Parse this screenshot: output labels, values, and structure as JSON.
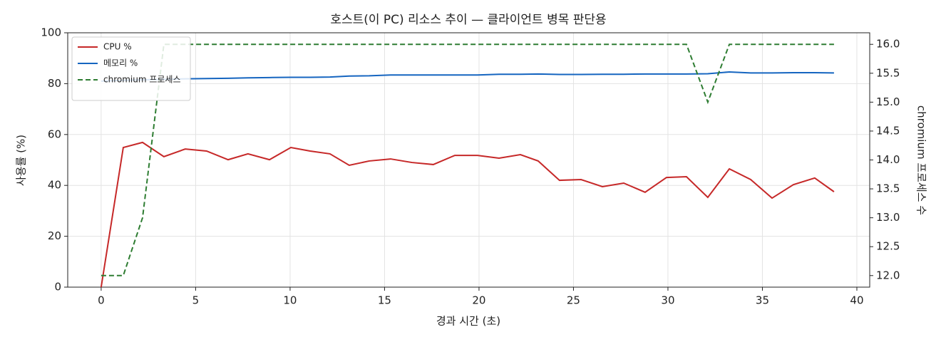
{
  "chart_data": {
    "type": "line",
    "title": "호스트(이 PC) 리소스 추이 — 클라이언트 병목 판단용",
    "xlabel": "경과 시간 (초)",
    "ylabel": "사용률 (%)",
    "y2label": "chromium 프로세스 수",
    "x": [
      0,
      1.17,
      2.19,
      3.32,
      4.45,
      5.58,
      6.72,
      7.77,
      8.91,
      10.04,
      11.06,
      12.11,
      13.13,
      14.19,
      15.32,
      16.45,
      17.58,
      18.72,
      19.92,
      21.06,
      22.19,
      23.13,
      24.26,
      25.4,
      26.53,
      27.66,
      28.79,
      29.92,
      30.98,
      32.11,
      33.25,
      34.38,
      35.51,
      36.64,
      37.77,
      38.79
    ],
    "series": [
      {
        "name": "CPU %",
        "color": "#c62828",
        "linestyle": "solid",
        "values": [
          0,
          54.9,
          56.9,
          51.3,
          54.3,
          53.5,
          50.1,
          52.4,
          50.1,
          54.9,
          53.5,
          52.4,
          47.9,
          49.6,
          50.4,
          49.0,
          48.2,
          51.8,
          51.8,
          50.7,
          52.1,
          49.6,
          42.0,
          42.3,
          39.5,
          40.9,
          37.3,
          43.1,
          43.4,
          35.3,
          46.5,
          42.3,
          35.0,
          40.3,
          42.9,
          37.5
        ]
      },
      {
        "name": "메모리 %",
        "color": "#1565c0",
        "linestyle": "solid",
        "values": [
          81.0,
          81.3,
          81.5,
          81.7,
          81.9,
          82.0,
          82.1,
          82.3,
          82.4,
          82.5,
          82.5,
          82.6,
          83.0,
          83.1,
          83.4,
          83.4,
          83.4,
          83.4,
          83.4,
          83.7,
          83.7,
          83.8,
          83.6,
          83.6,
          83.7,
          83.7,
          83.8,
          83.8,
          83.8,
          83.9,
          84.6,
          84.2,
          84.2,
          84.3,
          84.3,
          84.2
        ]
      },
      {
        "name": "chromium 프로세스",
        "color": "#2e7d32",
        "linestyle": "dashed",
        "axis": "y2",
        "values": [
          12,
          12,
          13,
          16,
          16,
          16,
          16,
          16,
          16,
          16,
          16,
          16,
          16,
          16,
          16,
          16,
          16,
          16,
          16,
          16,
          16,
          16,
          16,
          16,
          16,
          16,
          16,
          16,
          16,
          15,
          16,
          16,
          16,
          16,
          16,
          16
        ]
      }
    ],
    "xlim": [
      -1.77,
      40.68
    ],
    "xticks": [
      0,
      5,
      10,
      15,
      20,
      25,
      30,
      35,
      40
    ],
    "ylim": [
      0,
      100
    ],
    "yticks": [
      0,
      20,
      40,
      60,
      80,
      100
    ],
    "y2lim": [
      11.8,
      16.2
    ],
    "y2ticks": [
      {
        "value": 12,
        "label": "12.0"
      },
      12.5,
      {
        "value": 13,
        "label": "13.0"
      },
      13.5,
      {
        "value": 14,
        "label": "14.0"
      },
      14.5,
      {
        "value": 15,
        "label": "15.0"
      },
      15.5,
      {
        "value": 16,
        "label": "16.0"
      }
    ],
    "grid": true,
    "legend": "upper left"
  }
}
